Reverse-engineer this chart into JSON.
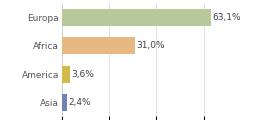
{
  "categories": [
    "Europa",
    "Africa",
    "America",
    "Asia"
  ],
  "values": [
    63.1,
    31.0,
    3.6,
    2.4
  ],
  "labels": [
    "63,1%",
    "31,0%",
    "3,6%",
    "2,4%"
  ],
  "bar_colors": [
    "#b5c99a",
    "#e8b882",
    "#d4b84a",
    "#7080b8"
  ],
  "background_color": "#ffffff",
  "xlim": [
    0,
    78
  ],
  "label_fontsize": 6.5,
  "category_fontsize": 6.5,
  "bar_height": 0.6
}
